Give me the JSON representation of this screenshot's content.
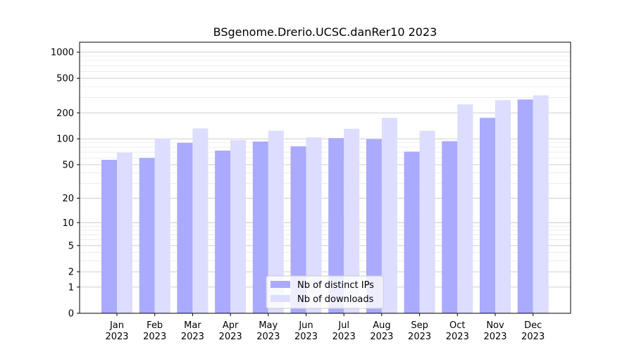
{
  "chart_data": {
    "type": "bar",
    "title": "BSgenome.Drerio.UCSC.danRer10 2023",
    "xlabel": "",
    "ylabel": "",
    "yscale": "symlog",
    "ylim": [
      0,
      1300
    ],
    "yticks": [
      0,
      1,
      2,
      5,
      10,
      20,
      50,
      100,
      200,
      500,
      1000
    ],
    "categories": [
      "Jan",
      "Feb",
      "Mar",
      "Apr",
      "May",
      "Jun",
      "Jul",
      "Aug",
      "Sep",
      "Oct",
      "Nov",
      "Dec"
    ],
    "category_sublabel": "2023",
    "series": [
      {
        "name": "Nb of distinct IPs",
        "color": "#aaaaff",
        "values": [
          57,
          60,
          90,
          73,
          93,
          82,
          102,
          99,
          71,
          94,
          175,
          285
        ]
      },
      {
        "name": "Nb of downloads",
        "color": "#ddddff",
        "values": [
          69,
          101,
          132,
          97,
          124,
          104,
          131,
          175,
          124,
          250,
          280,
          318
        ]
      }
    ],
    "legend_position": "lower center",
    "grid": true
  }
}
